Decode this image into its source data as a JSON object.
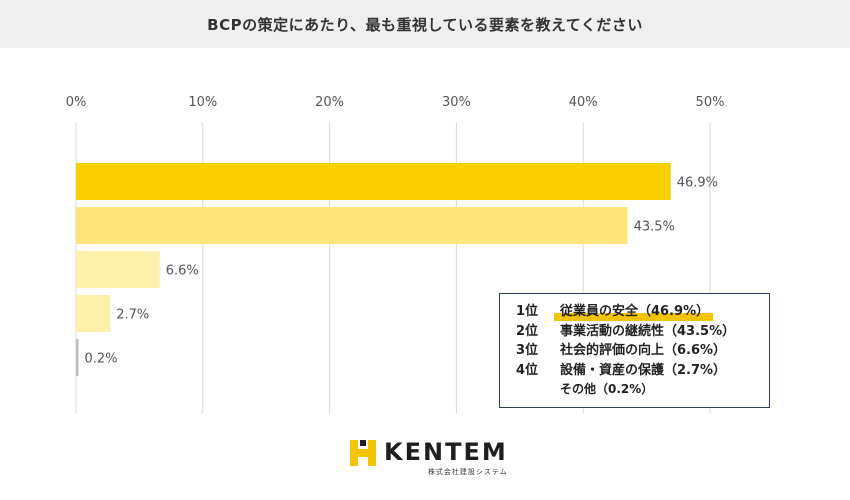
{
  "header": {
    "title": "BCPの策定にあたり、最も重視している要素を教えてください"
  },
  "chart_data": {
    "type": "bar",
    "orientation": "horizontal",
    "categories": [
      "従業員の安全",
      "事業活動の継続性",
      "社会的評価の向上",
      "設備・資産の保護",
      "その他"
    ],
    "values": [
      46.9,
      43.5,
      6.6,
      2.7,
      0.2
    ],
    "value_labels": [
      "46.9%",
      "43.5%",
      "6.6%",
      "2.7%",
      "0.2%"
    ],
    "colors": [
      "#f8d000",
      "#fde57a",
      "#fef0a8",
      "#fef0a8",
      "#bdbdbd"
    ],
    "xticks": [
      "0%",
      "10%",
      "20%",
      "30%",
      "40%",
      "50%"
    ],
    "xlim": [
      0,
      50
    ],
    "grid": true,
    "axis_position": "top"
  },
  "legend": {
    "rows": [
      {
        "rank": "1位",
        "text": "従業員の安全（46.9%）"
      },
      {
        "rank": "2位",
        "text": "事業活動の継続性（43.5%）"
      },
      {
        "rank": "3位",
        "text": "社会的評価の向上（6.6%）"
      },
      {
        "rank": "4位",
        "text": "設備・資産の保護（2.7%）"
      }
    ],
    "other": "その他（0.2%）"
  },
  "logo": {
    "name": "KENTEM",
    "subtitle": "株式会社建設システム",
    "color": "#f5c400"
  }
}
